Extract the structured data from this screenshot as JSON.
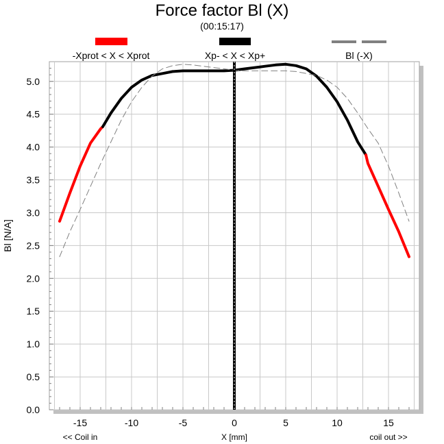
{
  "chart_data": {
    "type": "line",
    "title": "Force factor Bl (X)",
    "subtitle": "(00:15:17)",
    "xlabel": "X [mm]",
    "ylabel": "Bl [N/A]",
    "x_left_note": "<< Coil in",
    "x_right_note": "coil out >>",
    "xlim": [
      -18,
      18
    ],
    "ylim": [
      0,
      5.3
    ],
    "xticks": [
      -15,
      -10,
      -5,
      0,
      5,
      10,
      15
    ],
    "yticks": [
      0.0,
      0.5,
      1.0,
      1.5,
      2.0,
      2.5,
      3.0,
      3.5,
      4.0,
      4.5,
      5.0
    ],
    "ytick_labels": [
      "0.0",
      "0.5",
      "1.0",
      "1.5",
      "2.0",
      "2.5",
      "3.0",
      "3.5",
      "4.0",
      "4.5",
      "5.0"
    ],
    "grid": true,
    "legend": [
      {
        "label": "-Xprot < X < Xprot",
        "color": "#ff0000",
        "style": "solid"
      },
      {
        "label": "Xp- < X < Xp+",
        "color": "#000000",
        "style": "solid"
      },
      {
        "label": "Bl (-X)",
        "color": "#808080",
        "style": "dashed"
      }
    ],
    "series": [
      {
        "name": "-Xprot < X < Xprot",
        "color": "#ff0000",
        "x": [
          -17,
          -16,
          -15,
          -14,
          -13,
          -12.8
        ],
        "y": [
          2.87,
          3.3,
          3.71,
          4.06,
          4.28,
          4.31
        ]
      },
      {
        "name": "Xp- < X < Xp+",
        "color": "#000000",
        "x": [
          -12.8,
          -12,
          -11,
          -10,
          -9,
          -8,
          -7,
          -6,
          -5,
          -4,
          -3,
          -2,
          -1,
          0,
          1,
          2,
          3,
          4,
          5,
          6,
          7,
          8,
          9,
          10,
          11,
          12,
          12.8
        ],
        "y": [
          4.31,
          4.52,
          4.74,
          4.91,
          5.02,
          5.09,
          5.12,
          5.15,
          5.16,
          5.16,
          5.16,
          5.16,
          5.16,
          5.17,
          5.19,
          5.21,
          5.23,
          5.25,
          5.26,
          5.24,
          5.19,
          5.08,
          4.91,
          4.69,
          4.41,
          4.08,
          3.88
        ]
      },
      {
        "name": "-Xprot < X < Xprot",
        "color": "#ff0000",
        "x": [
          12.8,
          13,
          14,
          15,
          16,
          17
        ],
        "y": [
          3.88,
          3.75,
          3.4,
          3.05,
          2.71,
          2.33
        ]
      },
      {
        "name": "Bl (-X)",
        "color": "#808080",
        "dashed": true,
        "x": [
          -17,
          -16,
          -15,
          -14,
          -13,
          -12,
          -11,
          -10,
          -9,
          -8,
          -7,
          -6,
          -5,
          -4,
          -3,
          -2,
          -1,
          0,
          1,
          2,
          3,
          4,
          5,
          6,
          7,
          8,
          9,
          10,
          11,
          12,
          13,
          14,
          15,
          16,
          17
        ],
        "y": [
          2.33,
          2.71,
          3.05,
          3.4,
          3.75,
          4.08,
          4.41,
          4.69,
          4.91,
          5.08,
          5.19,
          5.24,
          5.26,
          5.25,
          5.23,
          5.21,
          5.19,
          5.17,
          5.16,
          5.16,
          5.16,
          5.16,
          5.16,
          5.15,
          5.12,
          5.09,
          5.02,
          4.91,
          4.74,
          4.52,
          4.28,
          4.06,
          3.71,
          3.3,
          2.87
        ]
      }
    ],
    "marker_x": 0
  }
}
